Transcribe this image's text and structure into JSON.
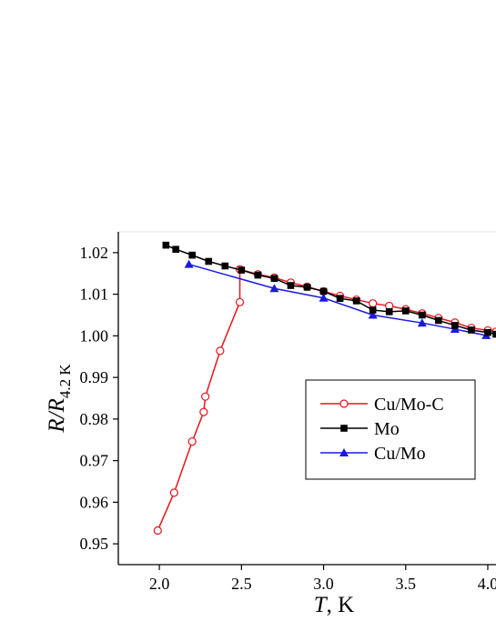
{
  "chart_data": {
    "type": "line",
    "xlabel": {
      "italic": "T",
      "rest": ", K"
    },
    "ylabel": {
      "italic": "R/R",
      "subscript": "4.2 K"
    },
    "xlim": [
      1.75,
      4.05
    ],
    "ylim": [
      0.945,
      1.025
    ],
    "xticks": [
      "2.0",
      "2.5",
      "3.0",
      "3.5",
      "4.0"
    ],
    "xtick_values": [
      2.0,
      2.5,
      3.0,
      3.5,
      4.0
    ],
    "yticks": [
      "0.95",
      "0.96",
      "0.97",
      "0.98",
      "0.99",
      "1.00",
      "1.01",
      "1.02"
    ],
    "ytick_values": [
      0.95,
      0.96,
      0.97,
      0.98,
      0.99,
      1.0,
      1.01,
      1.02
    ],
    "legend_position": "center-right",
    "series": [
      {
        "name": "Cu/Mo-C",
        "color": "#e8141c",
        "marker": "open-circle",
        "x": [
          1.99,
          2.09,
          2.2,
          2.27,
          2.28,
          2.37,
          2.49,
          2.49,
          2.6,
          2.7,
          2.8,
          2.9,
          3.0,
          3.1,
          3.2,
          3.3,
          3.4,
          3.5,
          3.6,
          3.7,
          3.8,
          3.9,
          4.0,
          4.05
        ],
        "y": [
          0.9532,
          0.9623,
          0.9746,
          0.9817,
          0.9854,
          0.9964,
          1.0081,
          1.016,
          1.0148,
          1.014,
          1.0128,
          1.0118,
          1.0107,
          1.0096,
          1.0087,
          1.0078,
          1.0072,
          1.0064,
          1.0054,
          1.0043,
          1.0032,
          1.0019,
          1.0013,
          1.001
        ]
      },
      {
        "name": "Mo",
        "color": "#000000",
        "marker": "filled-square",
        "x": [
          2.04,
          2.1,
          2.2,
          2.3,
          2.4,
          2.5,
          2.6,
          2.7,
          2.8,
          2.9,
          3.0,
          3.1,
          3.2,
          3.3,
          3.4,
          3.5,
          3.6,
          3.7,
          3.8,
          3.9,
          4.0,
          4.05
        ],
        "y": [
          1.0218,
          1.0208,
          1.0194,
          1.0179,
          1.0168,
          1.0158,
          1.0146,
          1.0138,
          1.0121,
          1.0117,
          1.0107,
          1.009,
          1.0084,
          1.0062,
          1.0058,
          1.006,
          1.005,
          1.0037,
          1.0025,
          1.0014,
          1.0008,
          1.0004
        ]
      },
      {
        "name": "Cu/Mo",
        "color": "#1a1adf",
        "marker": "filled-triangle",
        "x": [
          2.18,
          2.7,
          3.0,
          3.3,
          3.6,
          3.8,
          3.99
        ],
        "y": [
          1.0172,
          1.0114,
          1.0091,
          1.005,
          1.0031,
          1.0016,
          1.0001
        ]
      }
    ]
  }
}
